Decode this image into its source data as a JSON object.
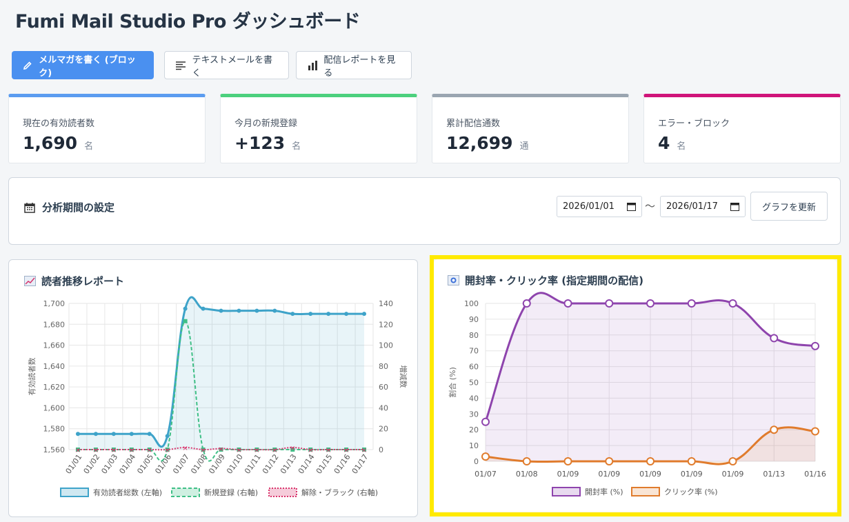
{
  "header": {
    "title": "Fumi Mail Studio Pro ダッシュボード"
  },
  "toolbar": {
    "write_block_label": "メルマガを書く (ブロック)",
    "write_text_label": "テキストメールを書く",
    "report_label": "配信レポートを見る"
  },
  "stats": [
    {
      "label": "現在の有効読者数",
      "value": "1,690",
      "unit": "名",
      "color": "#5b9cf0"
    },
    {
      "label": "今月の新規登録",
      "value": "+123",
      "unit": "名",
      "color": "#4cd07d"
    },
    {
      "label": "累計配信通数",
      "value": "12,699",
      "unit": "通",
      "color": "#9aa5b1"
    },
    {
      "label": "エラー・ブロック",
      "value": "4",
      "unit": "名",
      "color": "#d0157a"
    }
  ],
  "period": {
    "title": "分析期間の設定",
    "start": "2026/01/01",
    "end": "2026/01/17",
    "separator": "〜",
    "update_label": "グラフを更新"
  },
  "chart_data": [
    {
      "type": "line",
      "title": "読者推移レポート",
      "categories": [
        "01/01",
        "01/02",
        "01/03",
        "01/04",
        "01/05",
        "01/06",
        "01/07",
        "01/08",
        "01/09",
        "01/10",
        "01/11",
        "01/12",
        "01/13",
        "01/14",
        "01/15",
        "01/16",
        "01/17"
      ],
      "ylabel": "有効読者数",
      "y2label": "増減数",
      "ylim": [
        1560,
        1700
      ],
      "y2lim": [
        0,
        140
      ],
      "yticks": [
        "1,700",
        "1,680",
        "1,660",
        "1,640",
        "1,620",
        "1,600",
        "1,580",
        "1,560"
      ],
      "y2ticks": [
        "140",
        "120",
        "100",
        "80",
        "60",
        "40",
        "20",
        "0"
      ],
      "grid": true,
      "legend_position": "bottom",
      "series": [
        {
          "name": "有効読者総数 (左軸)",
          "axis": "left",
          "color": "#3ea3c9",
          "values": [
            1575,
            1575,
            1575,
            1575,
            1575,
            1573,
            1695,
            1695,
            1693,
            1693,
            1693,
            1693,
            1690,
            1690,
            1690,
            1690,
            1690
          ]
        },
        {
          "name": "新規登録 (右軸)",
          "axis": "right",
          "color": "#3fbf86",
          "values": [
            0,
            0,
            0,
            0,
            0,
            0,
            123,
            0,
            0,
            0,
            0,
            0,
            0,
            0,
            0,
            0,
            0
          ]
        },
        {
          "name": "解除・ブラック (右軸)",
          "axis": "right",
          "color": "#d9336b",
          "values": [
            0,
            0,
            0,
            0,
            0,
            0,
            2,
            0,
            1,
            0,
            0,
            0,
            2,
            0,
            0,
            0,
            0
          ]
        }
      ]
    },
    {
      "type": "line",
      "title": "開封率・クリック率 (指定期間の配信)",
      "categories": [
        "01/07",
        "01/08",
        "01/09",
        "01/09",
        "01/09",
        "01/09",
        "01/09",
        "01/13",
        "01/16"
      ],
      "ylabel": "割合 (%)",
      "ylim": [
        0,
        100
      ],
      "yticks": [
        "100",
        "90",
        "80",
        "70",
        "60",
        "50",
        "40",
        "30",
        "20",
        "10",
        "0"
      ],
      "grid": true,
      "legend_position": "bottom",
      "series": [
        {
          "name": "開封率 (%)",
          "color": "#8e44ad",
          "values": [
            25,
            100,
            100,
            100,
            100,
            100,
            100,
            78,
            73
          ]
        },
        {
          "name": "クリック率 (%)",
          "color": "#e07b2c",
          "values": [
            3,
            0,
            0,
            0,
            0,
            0,
            0,
            20,
            19
          ]
        }
      ]
    }
  ]
}
